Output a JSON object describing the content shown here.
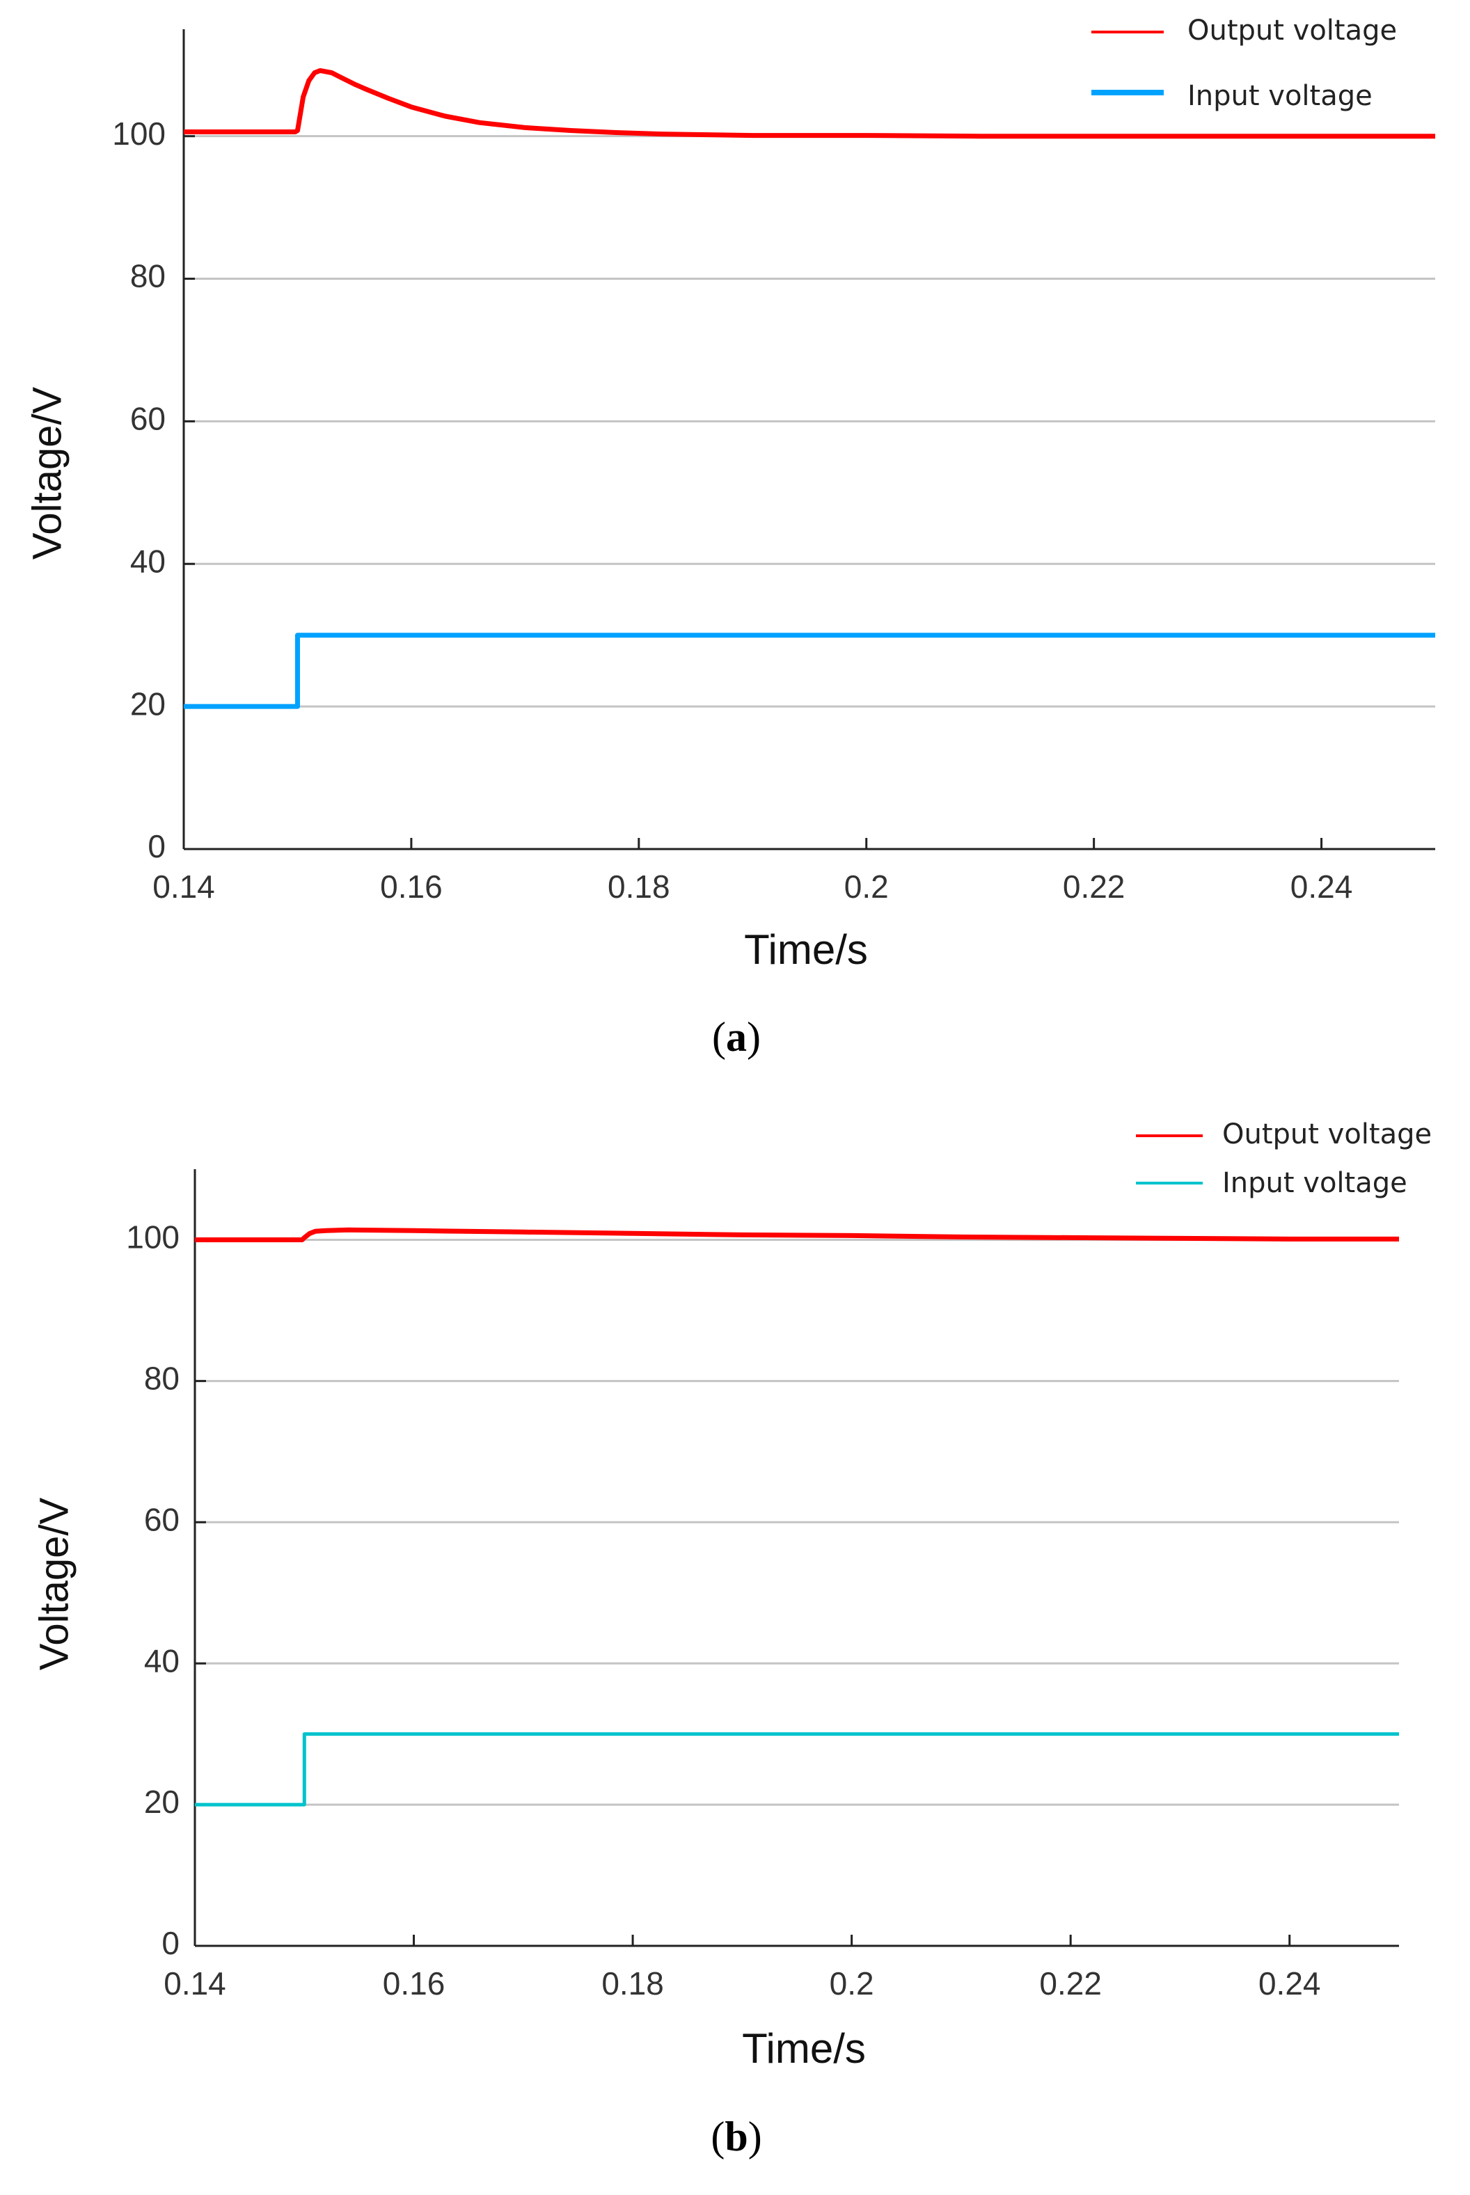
{
  "chart_data": [
    {
      "type": "line",
      "caption_open": "(",
      "caption_letter": "a",
      "caption_close": ")",
      "xlabel": "Time/s",
      "ylabel": "Voltage/V",
      "xlim": [
        0.14,
        0.25
      ],
      "ylim": [
        0,
        115
      ],
      "grid": true,
      "legend_position": "top-right",
      "xticks": [
        0.14,
        0.16,
        0.18,
        0.2,
        0.22,
        0.24
      ],
      "xtick_labels": [
        "0.14",
        "0.16",
        "0.18",
        "0.2",
        "0.22",
        "0.24"
      ],
      "yticks": [
        0,
        20,
        40,
        60,
        80,
        100
      ],
      "ytick_labels": [
        "0",
        "20",
        "40",
        "60",
        "80",
        "100"
      ],
      "series": [
        {
          "name": "Output voltage",
          "color": "#ff0000",
          "x": [
            0.14,
            0.1498,
            0.15,
            0.1505,
            0.151,
            0.1515,
            0.152,
            0.153,
            0.154,
            0.155,
            0.156,
            0.158,
            0.16,
            0.163,
            0.166,
            0.17,
            0.174,
            0.178,
            0.182,
            0.186,
            0.19,
            0.2,
            0.21,
            0.22,
            0.23,
            0.24,
            0.25
          ],
          "y": [
            100.6,
            100.6,
            100.8,
            105.5,
            107.8,
            108.9,
            109.2,
            108.9,
            108.1,
            107.3,
            106.6,
            105.3,
            104.1,
            102.8,
            101.9,
            101.2,
            100.8,
            100.5,
            100.3,
            100.2,
            100.1,
            100.1,
            100.0,
            100.0,
            100.0,
            100.0,
            100.0
          ]
        },
        {
          "name": "Input voltage",
          "color": "#00a2ff",
          "x": [
            0.14,
            0.15,
            0.15,
            0.25
          ],
          "y": [
            20,
            20,
            30,
            30
          ]
        }
      ]
    },
    {
      "type": "line",
      "caption_open": "(",
      "caption_letter": "b",
      "caption_close": ")",
      "xlabel": "Time/s",
      "ylabel": "Voltage/V",
      "xlim": [
        0.14,
        0.25
      ],
      "ylim": [
        0,
        110
      ],
      "grid": true,
      "legend_position": "top-right",
      "xticks": [
        0.14,
        0.16,
        0.18,
        0.2,
        0.22,
        0.24
      ],
      "xtick_labels": [
        "0.14",
        "0.16",
        "0.18",
        "0.2",
        "0.22",
        "0.24"
      ],
      "yticks": [
        0,
        20,
        40,
        60,
        80,
        100
      ],
      "ytick_labels": [
        "0",
        "20",
        "40",
        "60",
        "80",
        "100"
      ],
      "series": [
        {
          "name": "Output voltage",
          "color": "#ff0000",
          "x": [
            0.14,
            0.1498,
            0.15,
            0.1505,
            0.151,
            0.152,
            0.154,
            0.16,
            0.17,
            0.18,
            0.19,
            0.2,
            0.21,
            0.22,
            0.23,
            0.24,
            0.25
          ],
          "y": [
            100.0,
            100.0,
            100.3,
            100.9,
            101.2,
            101.3,
            101.4,
            101.3,
            101.1,
            100.9,
            100.7,
            100.6,
            100.4,
            100.3,
            100.2,
            100.1,
            100.1
          ]
        },
        {
          "name": "Input voltage",
          "color": "#00c3cc",
          "x": [
            0.14,
            0.15,
            0.15,
            0.25
          ],
          "y": [
            20,
            20,
            30,
            30
          ]
        }
      ]
    }
  ]
}
